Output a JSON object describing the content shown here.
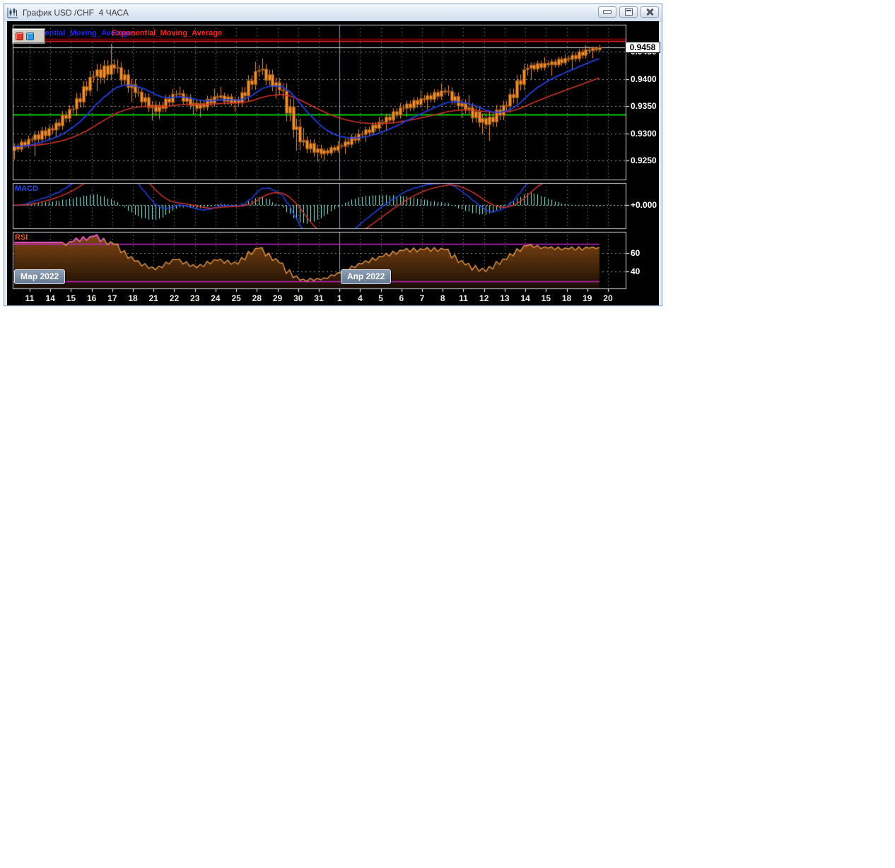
{
  "window": {
    "title": "График USD /CHF  4 ЧАСА",
    "controls": [
      {
        "name": "minimize"
      },
      {
        "name": "maximize"
      },
      {
        "name": "close"
      }
    ]
  },
  "legend": {
    "ema_fast_label": "Exponential_Moving_Average",
    "ema_slow_label": "Exponential_Moving_Average",
    "toggle_colors": [
      "#e23b2e",
      "#2f9de0"
    ]
  },
  "panels": {
    "macd_label": "MACD",
    "macd_zero_label": "+0.000",
    "rsi_label": "RSI",
    "rsi_level_labels": [
      "60",
      "40"
    ]
  },
  "axis": {
    "price_tick_labels": [
      "0.9450",
      "0.9400",
      "0.9350",
      "0.9300",
      "0.9250"
    ],
    "price_tick_values": [
      0.945,
      0.94,
      0.935,
      0.93,
      0.925
    ],
    "current_price_label": "0.9458",
    "x_labels": [
      "11",
      "14",
      "15",
      "16",
      "17",
      "18",
      "21",
      "22",
      "23",
      "24",
      "25",
      "28",
      "29",
      "30",
      "31",
      "1",
      "4",
      "5",
      "6",
      "7",
      "8",
      "11",
      "12",
      "13",
      "14",
      "15",
      "18",
      "19",
      "20"
    ],
    "month_badges": [
      "Мар 2022",
      "Апр 2022"
    ],
    "month_start_index": 15
  },
  "chart_data": {
    "type": "candlestick",
    "instrument": "USD/CHF",
    "timeframe": "4h",
    "price_axis": {
      "min": 0.9215,
      "max": 0.95
    },
    "candles_per_day": 6,
    "days": [
      {
        "d": "11",
        "o": 0.9268,
        "h": 0.9296,
        "l": 0.9252,
        "c": 0.9288
      },
      {
        "d": "14",
        "o": 0.9288,
        "h": 0.9316,
        "l": 0.9258,
        "c": 0.9306
      },
      {
        "d": "15",
        "o": 0.9306,
        "h": 0.9352,
        "l": 0.9292,
        "c": 0.9345
      },
      {
        "d": "16",
        "o": 0.9345,
        "h": 0.9415,
        "l": 0.9332,
        "c": 0.9405
      },
      {
        "d": "17",
        "o": 0.9405,
        "h": 0.9465,
        "l": 0.9378,
        "c": 0.942
      },
      {
        "d": "18",
        "o": 0.942,
        "h": 0.9436,
        "l": 0.9358,
        "c": 0.9375
      },
      {
        "d": "21",
        "o": 0.9375,
        "h": 0.9386,
        "l": 0.9324,
        "c": 0.934
      },
      {
        "d": "22",
        "o": 0.934,
        "h": 0.9382,
        "l": 0.9326,
        "c": 0.9372
      },
      {
        "d": "23",
        "o": 0.9372,
        "h": 0.9386,
        "l": 0.9334,
        "c": 0.9346
      },
      {
        "d": "24",
        "o": 0.9346,
        "h": 0.9382,
        "l": 0.933,
        "c": 0.9366
      },
      {
        "d": "25",
        "o": 0.9366,
        "h": 0.9386,
        "l": 0.934,
        "c": 0.9356
      },
      {
        "d": "28",
        "o": 0.9356,
        "h": 0.9432,
        "l": 0.935,
        "c": 0.9416
      },
      {
        "d": "29",
        "o": 0.9416,
        "h": 0.9438,
        "l": 0.9364,
        "c": 0.938
      },
      {
        "d": "30",
        "o": 0.938,
        "h": 0.9392,
        "l": 0.9268,
        "c": 0.9284
      },
      {
        "d": "31",
        "o": 0.9284,
        "h": 0.931,
        "l": 0.9248,
        "c": 0.9262
      },
      {
        "d": "1",
        "o": 0.9262,
        "h": 0.9286,
        "l": 0.925,
        "c": 0.9276
      },
      {
        "d": "4",
        "o": 0.9276,
        "h": 0.9308,
        "l": 0.9262,
        "c": 0.9298
      },
      {
        "d": "5",
        "o": 0.9298,
        "h": 0.933,
        "l": 0.9284,
        "c": 0.932
      },
      {
        "d": "6",
        "o": 0.932,
        "h": 0.9356,
        "l": 0.9304,
        "c": 0.9346
      },
      {
        "d": "7",
        "o": 0.9346,
        "h": 0.938,
        "l": 0.933,
        "c": 0.9362
      },
      {
        "d": "8",
        "o": 0.9362,
        "h": 0.9392,
        "l": 0.9344,
        "c": 0.9376
      },
      {
        "d": "11",
        "o": 0.9376,
        "h": 0.9388,
        "l": 0.9328,
        "c": 0.9344
      },
      {
        "d": "12",
        "o": 0.9344,
        "h": 0.937,
        "l": 0.9298,
        "c": 0.9316
      },
      {
        "d": "13",
        "o": 0.9316,
        "h": 0.936,
        "l": 0.9286,
        "c": 0.935
      },
      {
        "d": "14",
        "o": 0.935,
        "h": 0.9428,
        "l": 0.9338,
        "c": 0.942
      },
      {
        "d": "15",
        "o": 0.942,
        "h": 0.944,
        "l": 0.9398,
        "c": 0.9426
      },
      {
        "d": "18",
        "o": 0.9426,
        "h": 0.9446,
        "l": 0.9406,
        "c": 0.9436
      },
      {
        "d": "19",
        "o": 0.9436,
        "h": 0.9462,
        "l": 0.9416,
        "c": 0.9452
      },
      {
        "d": "20",
        "o": 0.9452,
        "h": 0.9463,
        "l": 0.9438,
        "c": 0.9458,
        "n": 3
      }
    ],
    "overlays": {
      "red_lines": [
        {
          "value": 0.9474,
          "color": "#8b0000"
        },
        {
          "value": 0.947,
          "color": "#ff2020"
        }
      ],
      "green_line": {
        "value": 0.9335,
        "color": "#00cc00"
      },
      "current_price_line": {
        "value": 0.9458,
        "color": "#dcdcdc"
      }
    },
    "indicators": {
      "ema_fast": {
        "period": 18,
        "color": "#2040e0"
      },
      "ema_slow": {
        "period": 50,
        "color": "#d03428"
      },
      "macd": {
        "fast": 12,
        "slow": 26,
        "signal": 9,
        "hist_color": "#8ff3e0",
        "macd_color": "#2040e0",
        "signal_color": "#d03428"
      },
      "rsi": {
        "period": 14,
        "line_color": "#f0a04c",
        "over_color": "#ff50ff",
        "band_color": "#c424c4",
        "bands": [
          70,
          30
        ],
        "grid_levels": [
          60,
          40
        ]
      }
    },
    "colors": {
      "background": "#000000",
      "candle_body": "#ef8f2f",
      "candle_border": "#8a4c12",
      "grid": "#9aa2ac",
      "panel_border": "#cfd4da",
      "month_line": "#8f9aa6"
    }
  }
}
